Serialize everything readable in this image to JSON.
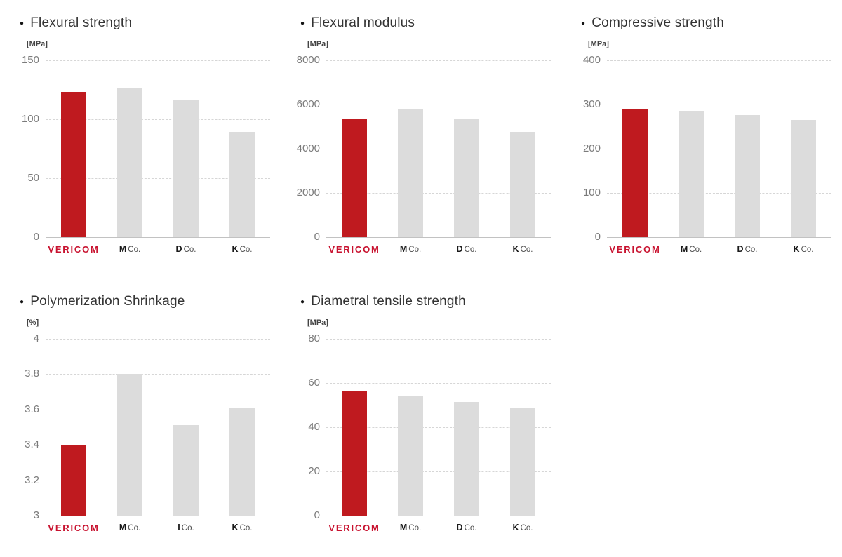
{
  "ui": {
    "bullet": "●"
  },
  "style": {
    "brand_bar_color": "#bf1a1f",
    "competitor_bar_color": "#dcdcdc",
    "brand_logo_color": "#c8122f"
  },
  "chart_data": [
    {
      "type": "bar",
      "title": "Flexural strength",
      "unit": "[MPa]",
      "ylabel": "MPa",
      "xlabel": "",
      "y_min": 0,
      "y_max": 150,
      "y_ticks": [
        150,
        100,
        50,
        0
      ],
      "grid": "dashed-horizontal",
      "categories": [
        "VERICOM",
        "M Co.",
        "D Co.",
        "K Co."
      ],
      "values": [
        123,
        126,
        116,
        89
      ]
    },
    {
      "type": "bar",
      "title": "Flexural modulus",
      "unit": "[MPa]",
      "ylabel": "MPa",
      "xlabel": "",
      "y_min": 0,
      "y_max": 8000,
      "y_ticks": [
        8000,
        6000,
        4000,
        2000,
        0
      ],
      "grid": "dashed-horizontal",
      "categories": [
        "VERICOM",
        "M Co.",
        "D Co.",
        "K Co."
      ],
      "values": [
        5350,
        5800,
        5350,
        4750
      ]
    },
    {
      "type": "bar",
      "title": "Compressive strength",
      "unit": "[MPa]",
      "ylabel": "MPa",
      "xlabel": "",
      "y_min": 0,
      "y_max": 400,
      "y_ticks": [
        400,
        300,
        200,
        100,
        0
      ],
      "grid": "dashed-horizontal",
      "categories": [
        "VERICOM",
        "M Co.",
        "D Co.",
        "K Co."
      ],
      "values": [
        290,
        285,
        276,
        265
      ]
    },
    {
      "type": "bar",
      "title": "Polymerization Shrinkage",
      "unit": "[%]",
      "ylabel": "%",
      "xlabel": "",
      "y_min": 3,
      "y_max": 4,
      "y_ticks": [
        4,
        3.8,
        3.6,
        3.4,
        3.2,
        3
      ],
      "grid": "dashed-horizontal",
      "categories": [
        "VERICOM",
        "M Co.",
        "I Co.",
        "K Co."
      ],
      "values": [
        3.4,
        3.8,
        3.51,
        3.61
      ]
    },
    {
      "type": "bar",
      "title": "Diametral tensile strength",
      "unit": "[MPa]",
      "ylabel": "MPa",
      "xlabel": "",
      "y_min": 0,
      "y_max": 80,
      "y_ticks": [
        80,
        60,
        40,
        20,
        0
      ],
      "grid": "dashed-horizontal",
      "categories": [
        "VERICOM",
        "M Co.",
        "D Co.",
        "K Co."
      ],
      "values": [
        56.5,
        54,
        51.5,
        49
      ]
    }
  ]
}
